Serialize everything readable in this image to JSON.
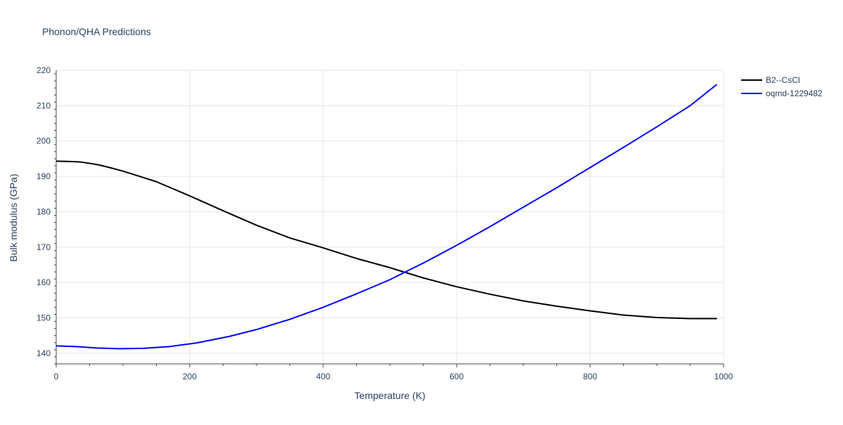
{
  "chart_data": {
    "type": "line",
    "title": "Phonon/QHA Predictions",
    "xlabel": "Temperature (K)",
    "ylabel": "Bulk modulus (GPa)",
    "xlim": [
      0,
      1000
    ],
    "ylim": [
      137,
      220
    ],
    "x_ticks": [
      0,
      200,
      400,
      600,
      800,
      1000
    ],
    "y_ticks": [
      140,
      150,
      160,
      170,
      180,
      190,
      200,
      210,
      220
    ],
    "grid": true,
    "legend_position": "top-right",
    "series": [
      {
        "name": "B2--CsCl",
        "color": "#000000",
        "points": [
          [
            0,
            194.3
          ],
          [
            20,
            194.2
          ],
          [
            35,
            194.1
          ],
          [
            50,
            193.7
          ],
          [
            65,
            193.2
          ],
          [
            80,
            192.5
          ],
          [
            100,
            191.5
          ],
          [
            125,
            190.0
          ],
          [
            150,
            188.5
          ],
          [
            200,
            184.5
          ],
          [
            250,
            180.3
          ],
          [
            300,
            176.2
          ],
          [
            350,
            172.6
          ],
          [
            400,
            169.8
          ],
          [
            450,
            166.8
          ],
          [
            500,
            164.2
          ],
          [
            550,
            161.3
          ],
          [
            600,
            158.8
          ],
          [
            650,
            156.7
          ],
          [
            700,
            154.8
          ],
          [
            750,
            153.3
          ],
          [
            800,
            152.0
          ],
          [
            850,
            150.8
          ],
          [
            900,
            150.1
          ],
          [
            950,
            149.8
          ],
          [
            990,
            149.8
          ]
        ]
      },
      {
        "name": "oqmd-1229482",
        "color": "#0000ff",
        "points": [
          [
            0,
            142.1
          ],
          [
            30,
            141.9
          ],
          [
            60,
            141.5
          ],
          [
            95,
            141.3
          ],
          [
            130,
            141.4
          ],
          [
            170,
            141.9
          ],
          [
            210,
            142.9
          ],
          [
            260,
            144.8
          ],
          [
            300,
            146.7
          ],
          [
            350,
            149.6
          ],
          [
            400,
            153.0
          ],
          [
            450,
            156.8
          ],
          [
            500,
            160.8
          ],
          [
            550,
            165.5
          ],
          [
            600,
            170.5
          ],
          [
            650,
            175.8
          ],
          [
            700,
            181.3
          ],
          [
            750,
            186.8
          ],
          [
            800,
            192.5
          ],
          [
            850,
            198.2
          ],
          [
            900,
            204.0
          ],
          [
            950,
            210.0
          ],
          [
            990,
            216.0
          ]
        ]
      }
    ]
  }
}
